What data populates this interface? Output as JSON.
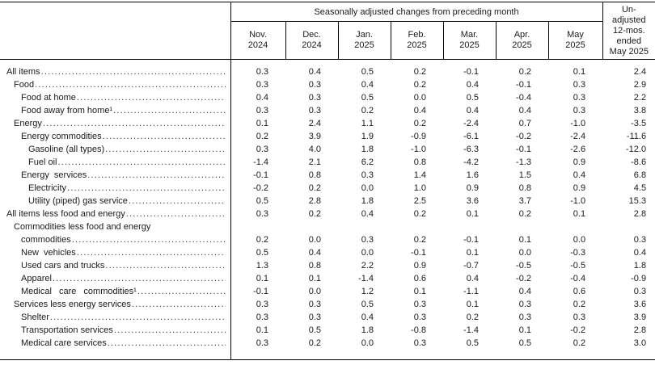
{
  "header": {
    "group_label": "Seasonally adjusted changes from preceding month",
    "months": [
      "Nov.\n2024",
      "Dec.\n2024",
      "Jan.\n2025",
      "Feb.\n2025",
      "Mar.\n2025",
      "Apr.\n2025",
      "May\n2025"
    ],
    "unadjusted_label": "Un-\nadjusted\n12-mos.\nended\nMay 2025"
  },
  "table": {
    "rows": [
      {
        "label": "All items",
        "level": 0,
        "values": [
          "0.3",
          "0.4",
          "0.5",
          "0.2",
          "-0.1",
          "0.2",
          "0.1",
          "2.4"
        ]
      },
      {
        "label": "Food",
        "level": 1,
        "values": [
          "0.3",
          "0.3",
          "0.4",
          "0.2",
          "0.4",
          "-0.1",
          "0.3",
          "2.9"
        ]
      },
      {
        "label": "Food at home",
        "level": 2,
        "values": [
          "0.4",
          "0.3",
          "0.5",
          "0.0",
          "0.5",
          "-0.4",
          "0.3",
          "2.2"
        ]
      },
      {
        "label": "Food away from home¹",
        "level": 2,
        "values": [
          "0.3",
          "0.3",
          "0.2",
          "0.4",
          "0.4",
          "0.4",
          "0.3",
          "3.8"
        ]
      },
      {
        "label": "Energy",
        "level": 1,
        "values": [
          "0.1",
          "2.4",
          "1.1",
          "0.2",
          "-2.4",
          "0.7",
          "-1.0",
          "-3.5"
        ]
      },
      {
        "label": "Energy commodities",
        "level": 2,
        "values": [
          "0.2",
          "3.9",
          "1.9",
          "-0.9",
          "-6.1",
          "-0.2",
          "-2.4",
          "-11.6"
        ]
      },
      {
        "label": "Gasoline (all types)",
        "level": 3,
        "values": [
          "0.3",
          "4.0",
          "1.8",
          "-1.0",
          "-6.3",
          "-0.1",
          "-2.6",
          "-12.0"
        ]
      },
      {
        "label": "Fuel oil",
        "level": 3,
        "values": [
          "-1.4",
          "2.1",
          "6.2",
          "0.8",
          "-4.2",
          "-1.3",
          "0.9",
          "-8.6"
        ]
      },
      {
        "label": "Energy services",
        "level": 2,
        "spread": 1,
        "values": [
          "-0.1",
          "0.8",
          "0.3",
          "1.4",
          "1.6",
          "1.5",
          "0.4",
          "6.8"
        ]
      },
      {
        "label": "Electricity",
        "level": 3,
        "values": [
          "-0.2",
          "0.2",
          "0.0",
          "1.0",
          "0.9",
          "0.8",
          "0.9",
          "4.5"
        ]
      },
      {
        "label": "Utility (piped) gas service",
        "level": 3,
        "values": [
          "0.5",
          "2.8",
          "1.8",
          "2.5",
          "3.6",
          "3.7",
          "-1.0",
          "15.3"
        ]
      },
      {
        "label": "All items less food and energy",
        "level": 0,
        "values": [
          "0.3",
          "0.2",
          "0.4",
          "0.2",
          "0.1",
          "0.2",
          "0.1",
          "2.8"
        ]
      },
      {
        "label": "Commodities less food and energy",
        "label2": "commodities",
        "level": 1,
        "values": [
          "0.2",
          "0.0",
          "0.3",
          "0.2",
          "-0.1",
          "0.1",
          "0.0",
          "0.3"
        ]
      },
      {
        "label": "New vehicles",
        "level": 2,
        "spread": 1,
        "values": [
          "0.5",
          "0.4",
          "0.0",
          "-0.1",
          "0.1",
          "0.0",
          "-0.3",
          "0.4"
        ]
      },
      {
        "label": "Used cars and trucks",
        "level": 2,
        "values": [
          "1.3",
          "0.8",
          "2.2",
          "0.9",
          "-0.7",
          "-0.5",
          "-0.5",
          "1.8"
        ]
      },
      {
        "label": "Apparel",
        "level": 2,
        "values": [
          "0.1",
          "0.1",
          "-1.4",
          "0.6",
          "0.4",
          "-0.2",
          "-0.4",
          "-0.9"
        ]
      },
      {
        "label": "Medical care commodities¹",
        "level": 2,
        "spread": 2,
        "values": [
          "-0.1",
          "0.0",
          "1.2",
          "0.1",
          "-1.1",
          "0.4",
          "0.6",
          "0.3"
        ]
      },
      {
        "label": "Services less energy services",
        "level": 1,
        "values": [
          "0.3",
          "0.3",
          "0.5",
          "0.3",
          "0.1",
          "0.3",
          "0.2",
          "3.6"
        ]
      },
      {
        "label": "Shelter",
        "level": 2,
        "values": [
          "0.3",
          "0.3",
          "0.4",
          "0.3",
          "0.2",
          "0.3",
          "0.3",
          "3.9"
        ]
      },
      {
        "label": "Transportation services",
        "level": 2,
        "values": [
          "0.1",
          "0.5",
          "1.8",
          "-0.8",
          "-1.4",
          "0.1",
          "-0.2",
          "2.8"
        ]
      },
      {
        "label": "Medical care services",
        "level": 2,
        "values": [
          "0.3",
          "0.2",
          "0.0",
          "0.3",
          "0.5",
          "0.5",
          "0.2",
          "3.0"
        ]
      }
    ]
  }
}
